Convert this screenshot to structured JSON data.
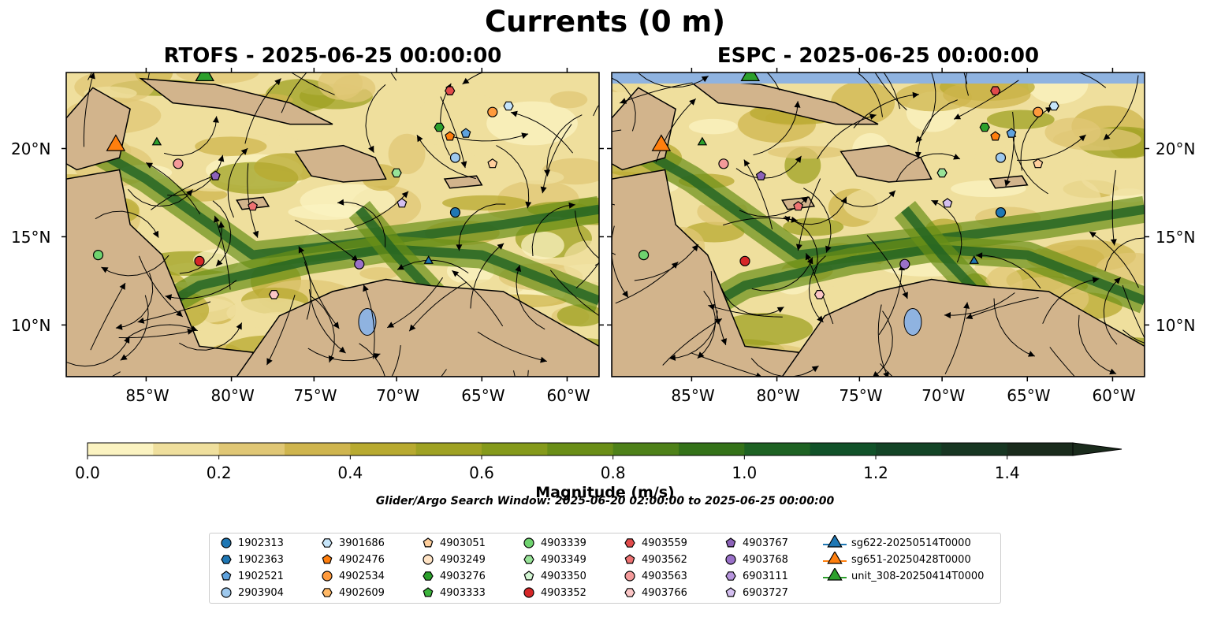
{
  "figure": {
    "title": "Currents (0 m)",
    "panels": [
      {
        "title": "RTOFS - 2025-06-25 00:00:00"
      },
      {
        "title": "ESPC - 2025-06-25 00:00:00"
      }
    ],
    "lon_ticks": [
      "85°W",
      "80°W",
      "75°W",
      "70°W",
      "65°W",
      "60°W"
    ],
    "lat_ticks": [
      "20°N",
      "15°N",
      "10°N"
    ],
    "colors": {
      "land": "#d2b48c",
      "water_feature": "#8fb3e0",
      "coastline": "#000000"
    }
  },
  "colorbar": {
    "label": "Magnitude (m/s)",
    "ticks": [
      "0.0",
      "0.2",
      "0.4",
      "0.6",
      "0.8",
      "1.0",
      "1.2",
      "1.4"
    ],
    "colors": [
      "#fbf3c1",
      "#efdf9d",
      "#e0c775",
      "#cfb54e",
      "#b8aa30",
      "#9fa223",
      "#859a1b",
      "#6a8e17",
      "#4e8119",
      "#347219",
      "#1e6223",
      "#115229",
      "#134426",
      "#173622",
      "#1a2b1c"
    ]
  },
  "search_window": "Glider/Argo Search Window: 2025-06-20 02:00:00 to 2025-06-25 00:00:00",
  "legend": {
    "columns": [
      [
        {
          "label": "1902313",
          "color": "#1f77b4",
          "shape": "circle"
        },
        {
          "label": "1902363",
          "color": "#1f77b4",
          "shape": "hexagon"
        },
        {
          "label": "1902521",
          "color": "#5fa2dd",
          "shape": "pentagon"
        },
        {
          "label": "2903904",
          "color": "#9ec9ee",
          "shape": "circle"
        }
      ],
      [
        {
          "label": "3901686",
          "color": "#c6e5fa",
          "shape": "hexagon"
        },
        {
          "label": "4902476",
          "color": "#ff7f0e",
          "shape": "pentagon"
        },
        {
          "label": "4902534",
          "color": "#ff9a3c",
          "shape": "circle"
        },
        {
          "label": "4902609",
          "color": "#ffb865",
          "shape": "hexagon"
        }
      ],
      [
        {
          "label": "4903051",
          "color": "#ffcf9c",
          "shape": "pentagon"
        },
        {
          "label": "4903249",
          "color": "#ffe3c4",
          "shape": "circle"
        },
        {
          "label": "4903276",
          "color": "#2ca02c",
          "shape": "hexagon"
        },
        {
          "label": "4903333",
          "color": "#3cb43c",
          "shape": "pentagon"
        }
      ],
      [
        {
          "label": "4903339",
          "color": "#6fd36f",
          "shape": "circle"
        },
        {
          "label": "4903349",
          "color": "#98e398",
          "shape": "hexagon"
        },
        {
          "label": "4903350",
          "color": "#d4f7d4",
          "shape": "pentagon"
        },
        {
          "label": "4903352",
          "color": "#d62728",
          "shape": "circle"
        }
      ],
      [
        {
          "label": "4903559",
          "color": "#e14b4b",
          "shape": "hexagon"
        },
        {
          "label": "4903562",
          "color": "#ee7272",
          "shape": "pentagon"
        },
        {
          "label": "4903563",
          "color": "#f49a9a",
          "shape": "circle"
        },
        {
          "label": "4903766",
          "color": "#fbc6c6",
          "shape": "hexagon"
        }
      ],
      [
        {
          "label": "4903767",
          "color": "#8c62b8",
          "shape": "pentagon"
        },
        {
          "label": "4903768",
          "color": "#9a71c9",
          "shape": "circle"
        },
        {
          "label": "6903111",
          "color": "#b795dd",
          "shape": "hexagon"
        },
        {
          "label": "6903727",
          "color": "#d4bff0",
          "shape": "pentagon"
        }
      ],
      [
        {
          "label": "sg622-20250514T0000",
          "color": "#1f77b4",
          "shape": "triangle"
        },
        {
          "label": "sg651-20250428T0000",
          "color": "#ff7f0e",
          "shape": "triangle"
        },
        {
          "label": "unit_308-20250414T0000",
          "color": "#2ca02c",
          "shape": "triangle"
        }
      ]
    ]
  }
}
